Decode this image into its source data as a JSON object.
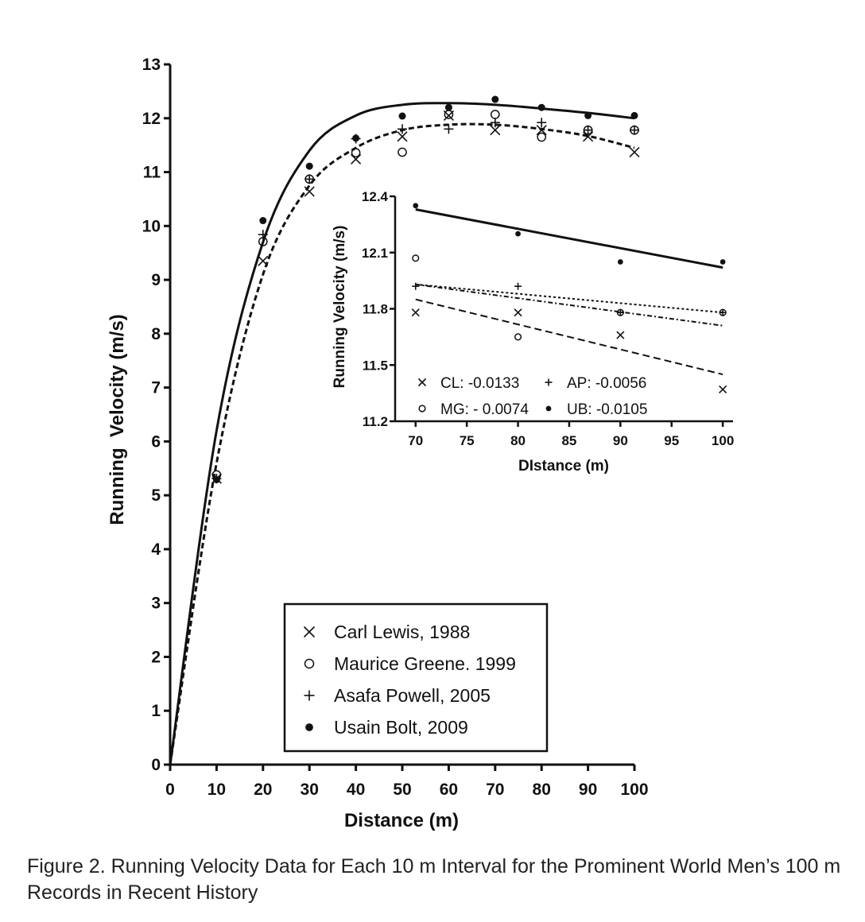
{
  "caption": "Figure 2. Running Velocity Data for Each 10 m Interval for the Prominent World Men’s 100 m Records in Recent History",
  "chart_data": [
    {
      "type": "scatter",
      "xlabel": "Distance (m)",
      "ylabel": "Running  Velocity (m/s)",
      "xlim": [
        0,
        100
      ],
      "ylim": [
        0,
        13
      ],
      "xticks": [
        "0",
        "10",
        "20",
        "30",
        "40",
        "50",
        "60",
        "70",
        "80",
        "90",
        "100"
      ],
      "yticks": [
        "0",
        "1",
        "2",
        "3",
        "4",
        "5",
        "6",
        "7",
        "8",
        "9",
        "10",
        "11",
        "12",
        "13"
      ],
      "legend_position": "bottom-center",
      "x": [
        10,
        20,
        30,
        40,
        50,
        60,
        70,
        80,
        90,
        100
      ],
      "series": [
        {
          "name": "Carl Lewis, 1988",
          "marker": "x",
          "values": [
            5.31,
            9.35,
            10.64,
            11.24,
            11.66,
            12.05,
            11.78,
            11.78,
            11.66,
            11.37
          ]
        },
        {
          "name": "Maurice Greene. 1999",
          "marker": "circle",
          "values": [
            5.38,
            9.71,
            10.87,
            11.36,
            11.37,
            12.07,
            12.07,
            11.65,
            11.78,
            11.78
          ]
        },
        {
          "name": "Asafa Powell, 2005",
          "marker": "plus",
          "values": [
            5.31,
            9.84,
            10.87,
            11.62,
            11.8,
            11.8,
            11.92,
            11.92,
            11.78,
            11.78
          ]
        },
        {
          "name": "Usain Bolt, 2009",
          "marker": "dot",
          "values": [
            5.29,
            10.1,
            11.11,
            11.63,
            12.04,
            12.2,
            12.35,
            12.2,
            12.05,
            12.05
          ]
        }
      ],
      "fitted_curves": [
        {
          "style": "solid",
          "x": [
            0,
            10,
            20,
            30,
            40,
            50,
            60,
            70,
            80,
            90,
            100
          ],
          "y": [
            0,
            6.2,
            9.7,
            11.4,
            12.05,
            12.25,
            12.28,
            12.25,
            12.18,
            12.1,
            12.0
          ]
        },
        {
          "style": "dashed",
          "x": [
            0,
            10,
            20,
            30,
            40,
            50,
            60,
            70,
            80,
            90,
            100
          ],
          "y": [
            0,
            5.6,
            9.1,
            10.75,
            11.45,
            11.78,
            11.88,
            11.88,
            11.8,
            11.67,
            11.45
          ]
        }
      ]
    },
    {
      "type": "scatter",
      "xlabel": "DIstance (m)",
      "ylabel": "Running Velocity (m/s)",
      "xlim": [
        68,
        101
      ],
      "ylim": [
        11.2,
        12.4
      ],
      "xticks": [
        "70",
        "75",
        "80",
        "85",
        "90",
        "95",
        "100"
      ],
      "yticks": [
        "11.2",
        "11.5",
        "11.8",
        "12.1",
        "12.4"
      ],
      "x": [
        70,
        80,
        90,
        100
      ],
      "series": [
        {
          "name": "CL",
          "marker": "x",
          "slope_label": "CL: -0.0133",
          "values": [
            11.78,
            11.78,
            11.66,
            11.37
          ]
        },
        {
          "name": "MG",
          "marker": "circle",
          "slope_label": "MG: - 0.0074",
          "values": [
            12.07,
            11.65,
            11.78,
            11.78
          ]
        },
        {
          "name": "AP",
          "marker": "plus",
          "slope_label": "AP: -0.0056",
          "values": [
            11.92,
            11.92,
            11.78,
            11.78
          ]
        },
        {
          "name": "UB",
          "marker": "dot",
          "slope_label": "UB: -0.0105",
          "values": [
            12.35,
            12.2,
            12.05,
            12.05
          ]
        }
      ],
      "fitted_lines": [
        {
          "series": "UB",
          "style": "solid",
          "x": [
            70,
            100
          ],
          "y": [
            12.33,
            12.02
          ]
        },
        {
          "series": "AP",
          "style": "dotted",
          "x": [
            70,
            100
          ],
          "y": [
            11.93,
            11.78
          ]
        },
        {
          "series": "MG",
          "style": "dash-dot",
          "x": [
            70,
            100
          ],
          "y": [
            11.93,
            11.71
          ]
        },
        {
          "series": "CL",
          "style": "dashed",
          "x": [
            70,
            100
          ],
          "y": [
            11.85,
            11.45
          ]
        }
      ]
    }
  ]
}
